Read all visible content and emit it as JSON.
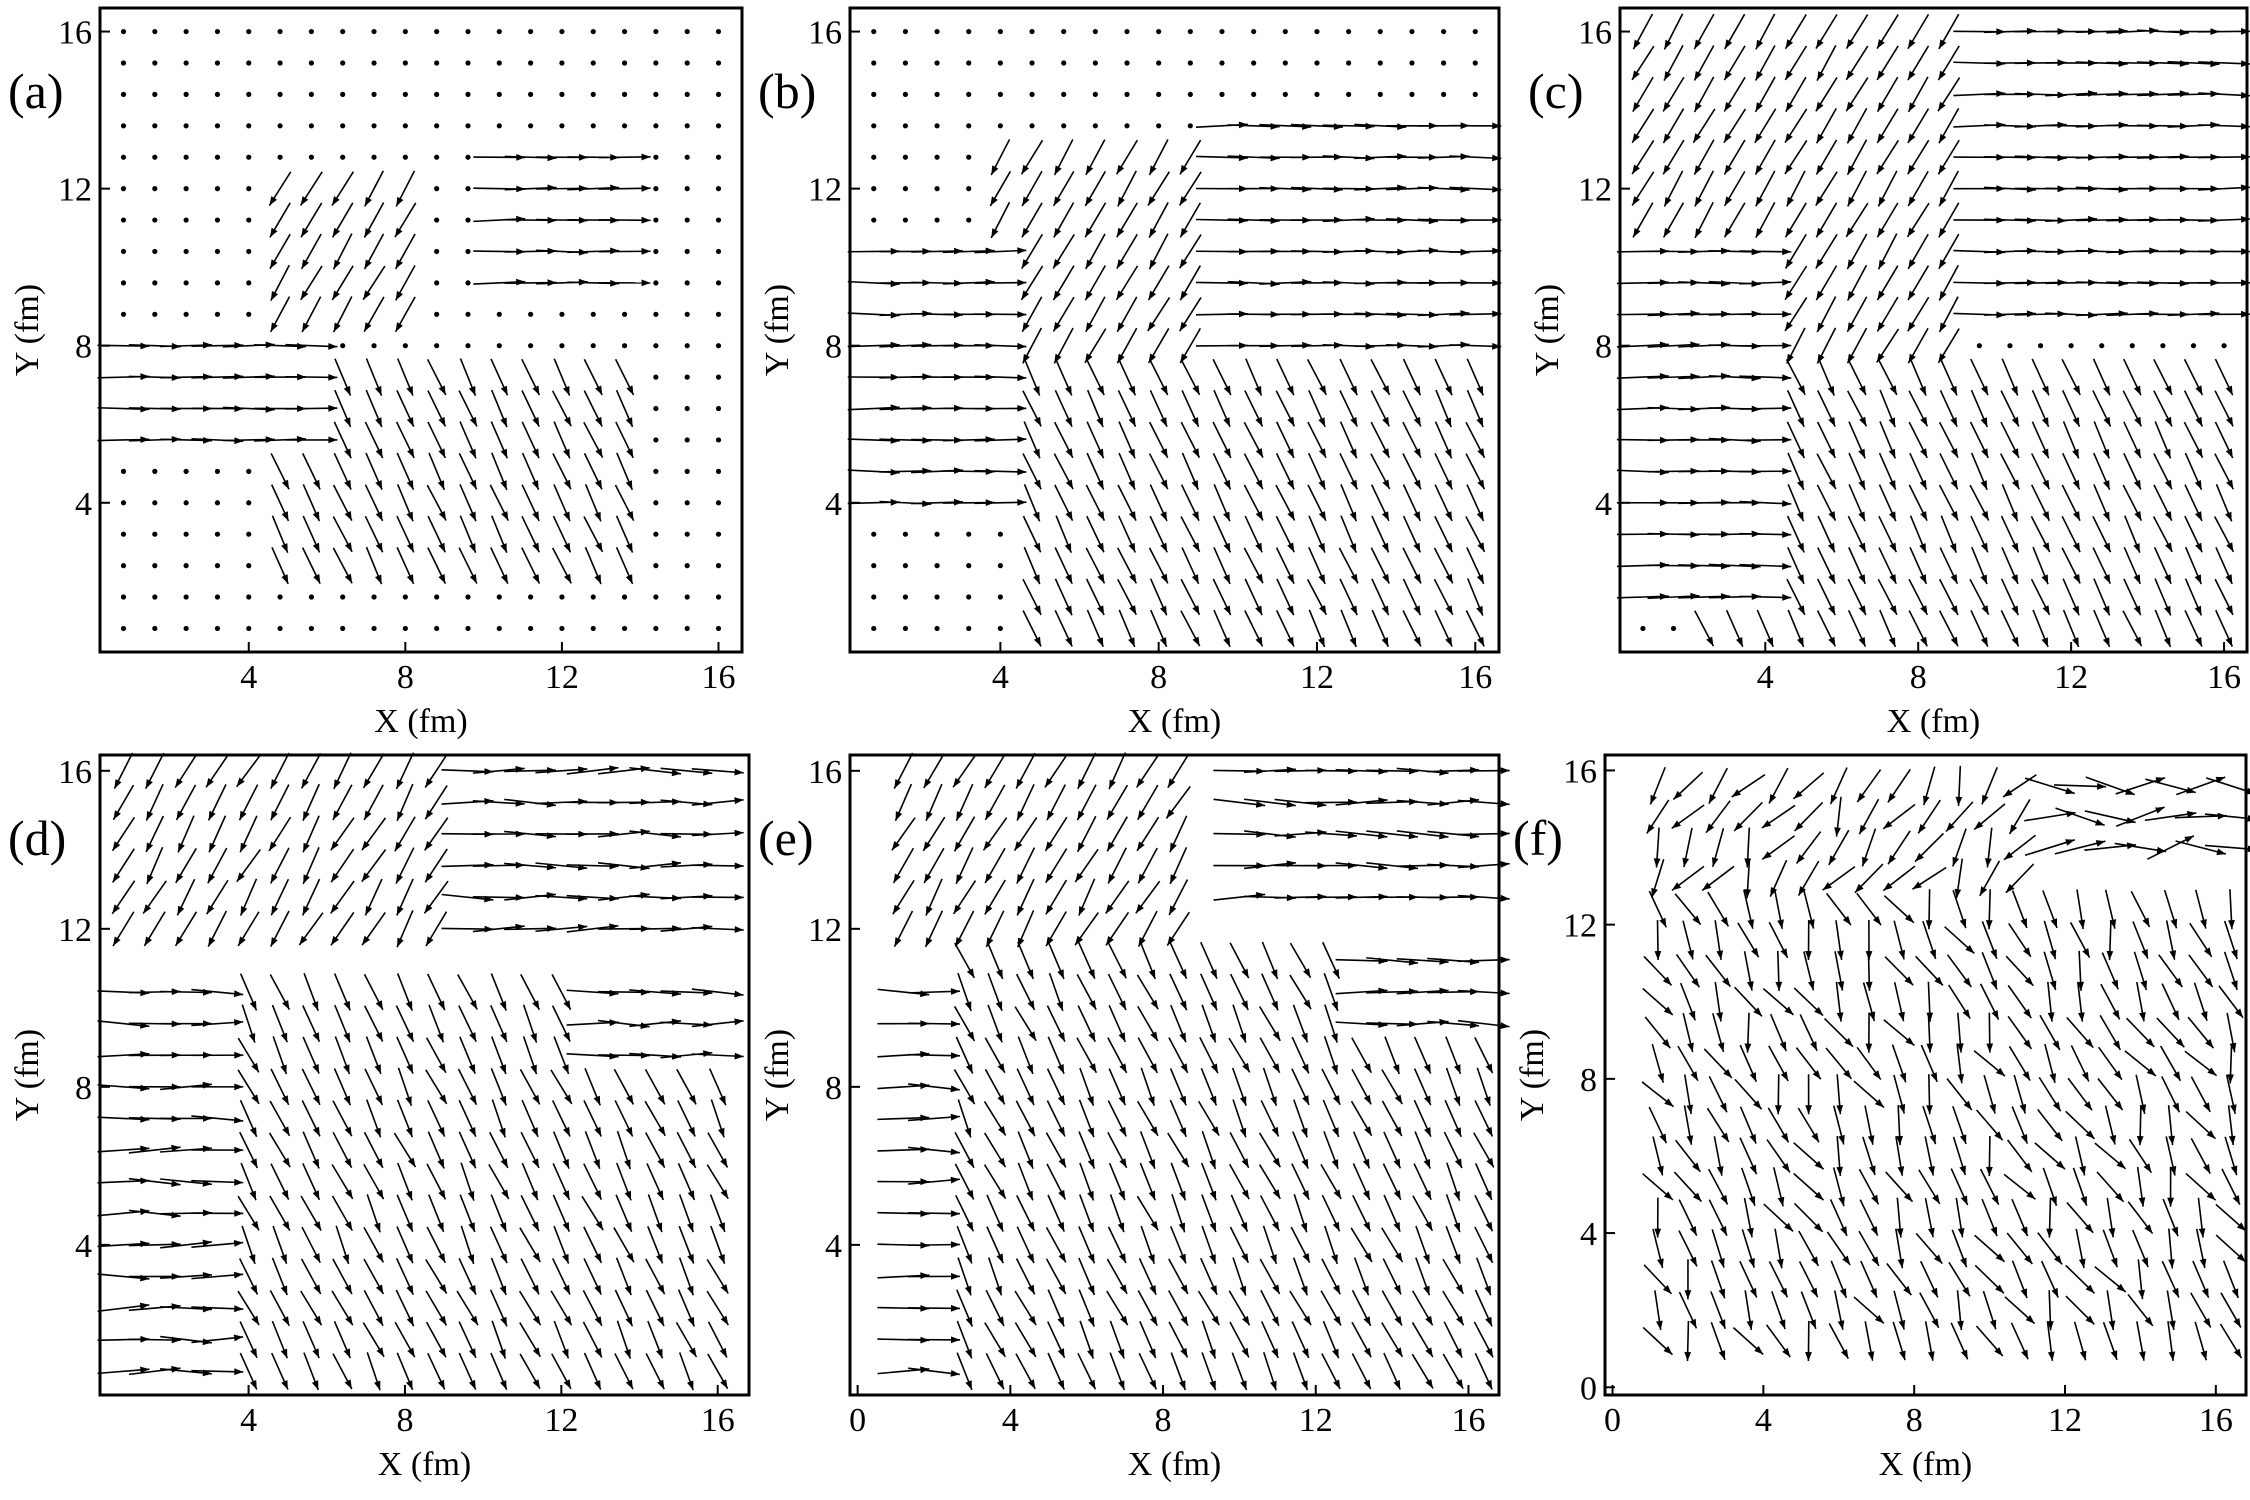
{
  "chart_data": [
    {
      "panel": "(a)",
      "type": "vector_field",
      "xlabel": "X (fm)",
      "ylabel": "Y (fm)",
      "xticks": [
        4,
        8,
        12,
        16
      ],
      "yticks": [
        4,
        8,
        12,
        16
      ],
      "xlim": [
        0.2,
        16.6
      ],
      "ylim": [
        0.2,
        16.6
      ],
      "regions": [
        {
          "kind": "right",
          "rect": [
            0,
            5.6,
            5.6,
            8.2
          ],
          "angle": 0
        },
        {
          "kind": "right",
          "rect": [
            9.8,
            14.4,
            8.8,
            13.2
          ],
          "angle": 0
        },
        {
          "kind": "down-left",
          "rect": [
            4.4,
            8.2,
            8.2,
            12.6
          ],
          "angle": 240
        },
        {
          "kind": "down-right",
          "rect": [
            4.4,
            14.4,
            2.2,
            7.6
          ],
          "angle": 295
        },
        {
          "kind": "dot",
          "rect": [
            0,
            17,
            0,
            17
          ]
        }
      ]
    },
    {
      "panel": "(b)",
      "type": "vector_field",
      "xlabel": "X (fm)",
      "ylabel": "Y (fm)",
      "xticks": [
        4,
        8,
        12,
        16
      ],
      "yticks": [
        4,
        8,
        12,
        16
      ],
      "xlim": [
        0.2,
        16.6
      ],
      "ylim": [
        0.2,
        16.6
      ],
      "regions": [
        {
          "kind": "right",
          "rect": [
            0,
            4.6,
            3.6,
            10.6
          ],
          "angle": 0
        },
        {
          "kind": "right",
          "rect": [
            9.0,
            16.6,
            7.6,
            14.4
          ],
          "angle": 0
        },
        {
          "kind": "down-left",
          "rect": [
            3.6,
            8.8,
            7.6,
            13.6
          ],
          "angle": 240
        },
        {
          "kind": "down-right",
          "rect": [
            4.4,
            16.6,
            0.6,
            7.4
          ],
          "angle": 295
        },
        {
          "kind": "dot",
          "rect": [
            0,
            17,
            0,
            17
          ]
        }
      ]
    },
    {
      "panel": "(c)",
      "type": "vector_field",
      "xlabel": "X (fm)",
      "ylabel": "Y (fm)",
      "xticks": [
        4,
        8,
        12,
        16
      ],
      "yticks": [
        4,
        8,
        12,
        16
      ],
      "xlim": [
        0.2,
        16.6
      ],
      "ylim": [
        0.2,
        16.6
      ],
      "regions": [
        {
          "kind": "right",
          "rect": [
            0,
            4.6,
            1.2,
            10.6
          ],
          "angle": 0
        },
        {
          "kind": "right",
          "rect": [
            9.0,
            16.6,
            8.2,
            16.6
          ],
          "angle": 0
        },
        {
          "kind": "down-left",
          "rect": [
            0,
            8.8,
            7.8,
            16.6
          ],
          "angle": 240
        },
        {
          "kind": "down-right",
          "rect": [
            2.0,
            16.6,
            0.4,
            7.8
          ],
          "angle": 295
        },
        {
          "kind": "dot",
          "rect": [
            0,
            17,
            0,
            17
          ]
        }
      ]
    },
    {
      "panel": "(d)",
      "type": "vector_field",
      "xlabel": "X (fm)",
      "ylabel": "Y (fm)",
      "xticks": [
        4,
        8,
        12,
        16
      ],
      "yticks": [
        4,
        8,
        12,
        16
      ],
      "xlim": [
        0.2,
        16.8
      ],
      "ylim": [
        0.2,
        16.4
      ],
      "regions": [
        {
          "kind": "right",
          "rect": [
            0,
            3.4,
            0.6,
            10.8
          ],
          "angle": 0
        },
        {
          "kind": "right",
          "rect": [
            9.2,
            16.8,
            11.4,
            16.4
          ],
          "angle": 0
        },
        {
          "kind": "right",
          "rect": [
            12.2,
            16.8,
            8.4,
            10.8
          ],
          "angle": 0
        },
        {
          "kind": "down-left",
          "rect": [
            0.6,
            8.8,
            11.4,
            16.4
          ],
          "angle": 240
        },
        {
          "kind": "down-right",
          "rect": [
            3.4,
            16.8,
            0.6,
            11.0
          ],
          "angle": 295
        }
      ]
    },
    {
      "panel": "(e)",
      "type": "vector_field",
      "xlabel": "X (fm)",
      "ylabel": "Y (fm)",
      "xticks": [
        0,
        4,
        8,
        12,
        16
      ],
      "yticks": [
        4,
        8,
        12,
        16
      ],
      "xlim": [
        -0.2,
        16.8
      ],
      "ylim": [
        0.2,
        16.4
      ],
      "regions": [
        {
          "kind": "right",
          "rect": [
            0.6,
            2.2,
            0.6,
            10.4
          ],
          "angle": 0
        },
        {
          "kind": "right",
          "rect": [
            9.4,
            16.8,
            12.8,
            16.4
          ],
          "angle": 0
        },
        {
          "kind": "right",
          "rect": [
            12.6,
            16.8,
            9.4,
            12.0
          ],
          "angle": 0
        },
        {
          "kind": "down-left",
          "rect": [
            0.6,
            8.6,
            11.6,
            16.4
          ],
          "angle": 240
        },
        {
          "kind": "down-right",
          "rect": [
            2.2,
            16.8,
            0.6,
            11.6
          ],
          "angle": 295
        }
      ]
    },
    {
      "panel": "(f)",
      "type": "vector_field",
      "xlabel": "X (fm)",
      "ylabel": "Y (fm)",
      "xticks": [
        0,
        4,
        8,
        12,
        16
      ],
      "yticks": [
        0,
        4,
        8,
        12,
        16
      ],
      "xlim": [
        -0.2,
        16.8
      ],
      "ylim": [
        -0.2,
        16.4
      ],
      "regions": [
        {
          "kind": "right",
          "rect": [
            11.4,
            16.8,
            13.6,
            16.4
          ],
          "angle": 0
        },
        {
          "kind": "down-left",
          "rect": [
            0.4,
            11.2,
            12.6,
            16.4
          ],
          "angle": 240
        },
        {
          "kind": "down-right",
          "rect": [
            0.4,
            16.8,
            0.4,
            12.6
          ],
          "angle": 295
        }
      ]
    }
  ]
}
